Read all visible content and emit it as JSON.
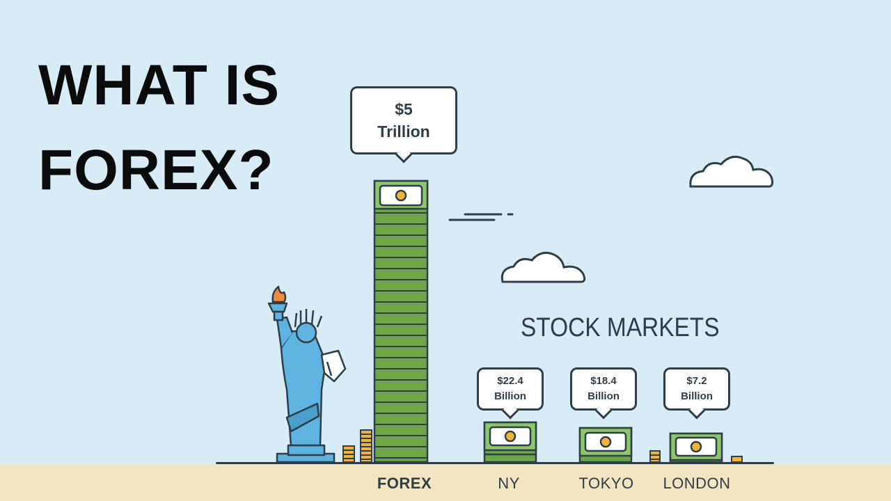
{
  "title": {
    "line1": "WHAT IS",
    "line2": "FOREX?"
  },
  "forex_callout": {
    "line1": "$5",
    "line2": "Trillion"
  },
  "stock_markets_heading": "STOCK MARKETS",
  "markets": [
    {
      "name": "FOREX"
    },
    {
      "name": "NY",
      "value_line1": "$22.4",
      "value_line2": "Billion"
    },
    {
      "name": "TOKYO",
      "value_line1": "$18.4",
      "value_line2": "Billion"
    },
    {
      "name": "LONDON",
      "value_line1": "$7.2",
      "value_line2": "Billion"
    }
  ],
  "colors": {
    "sky": "#d8ecf5",
    "ground": "#f1e5c2",
    "money_green": "#6da64a",
    "outline": "#2f3d48",
    "statue_blue": "#5fb3e0",
    "coin_gold": "#f2b33a"
  }
}
